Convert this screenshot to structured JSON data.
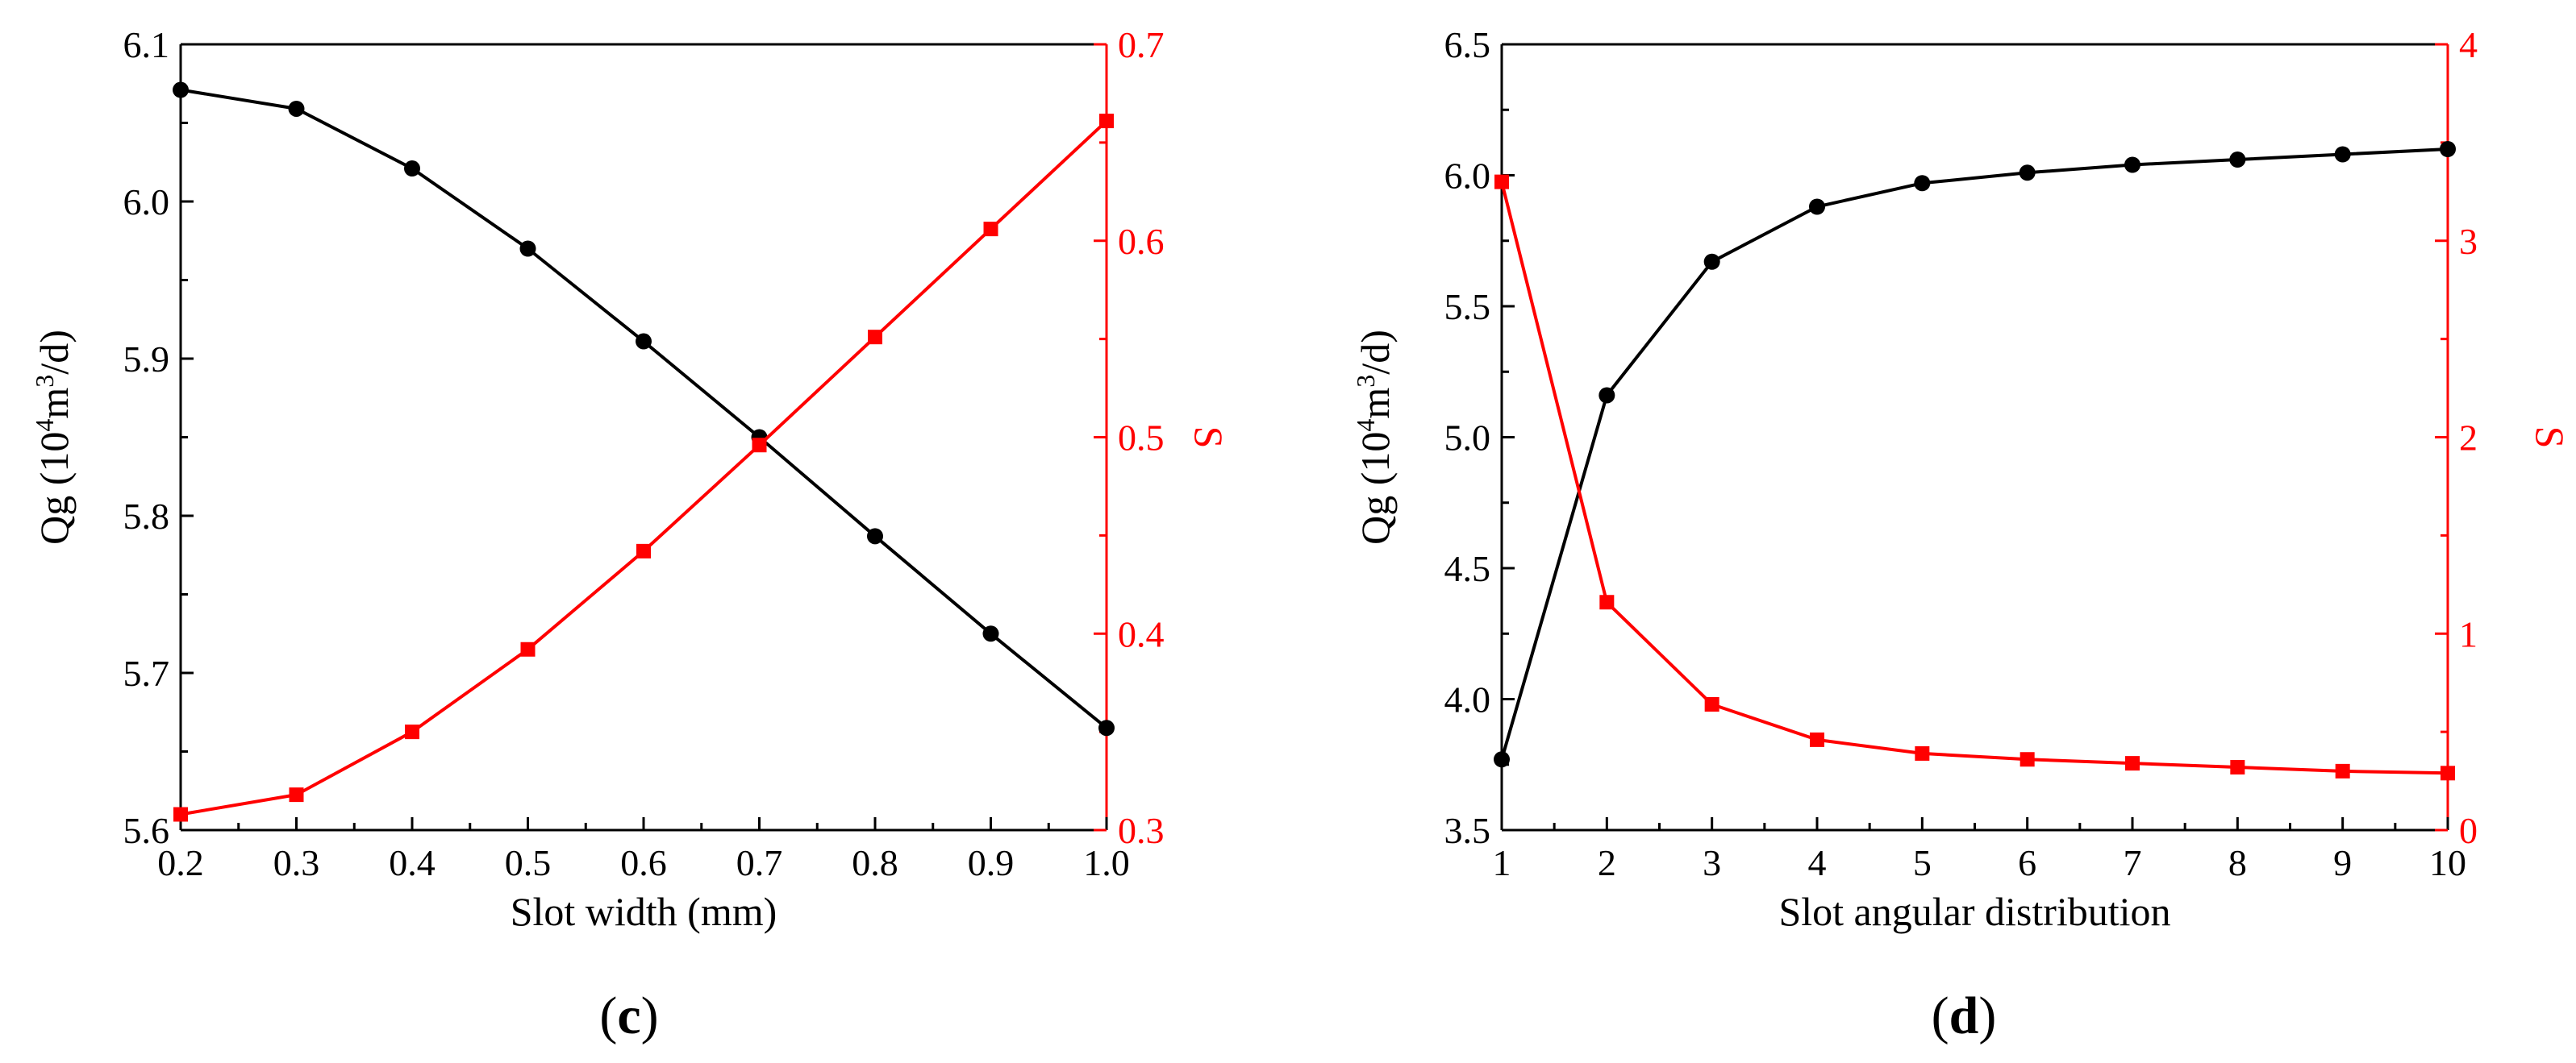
{
  "chart_data": [
    {
      "type": "line",
      "panel": "c",
      "panel_label": {
        "open": "(",
        "letter": "c",
        "close": ")"
      },
      "xlabel": "Slot width (mm)",
      "ylabel_left": {
        "prefix": "Qg (10",
        "sup1": "4",
        "mid": "m",
        "sup2": "3",
        "suffix": "/d)"
      },
      "ylabel_right": "S",
      "x": [
        0.2,
        0.3,
        0.4,
        0.5,
        0.6,
        0.7,
        0.8,
        0.9,
        1.0
      ],
      "xlim": [
        0.2,
        1.0
      ],
      "x_ticks": [
        "0.2",
        "0.3",
        "0.4",
        "0.5",
        "0.6",
        "0.7",
        "0.8",
        "0.9",
        "1.0"
      ],
      "ylim_left": [
        5.6,
        6.1
      ],
      "y_ticks_left": [
        "5.6",
        "5.7",
        "5.8",
        "5.9",
        "6.0",
        "6.1"
      ],
      "ylim_right": [
        0.3,
        0.7
      ],
      "y_ticks_right": [
        "0.3",
        "0.4",
        "0.5",
        "0.6",
        "0.7"
      ],
      "series": [
        {
          "name": "Qg",
          "axis": "left",
          "color": "#000000",
          "marker": "circle",
          "values": [
            6.071,
            6.059,
            6.021,
            5.97,
            5.911,
            5.85,
            5.787,
            5.725,
            5.665
          ]
        },
        {
          "name": "S",
          "axis": "right",
          "color": "#ff0000",
          "marker": "square",
          "values": [
            0.308,
            0.318,
            0.35,
            0.392,
            0.442,
            0.496,
            0.551,
            0.606,
            0.661
          ]
        }
      ]
    },
    {
      "type": "line",
      "panel": "d",
      "panel_label": {
        "open": "(",
        "letter": "d",
        "close": ")"
      },
      "xlabel": "Slot angular distribution",
      "ylabel_left": {
        "prefix": "Qg (10",
        "sup1": "4",
        "mid": "m",
        "sup2": "3",
        "suffix": "/d)"
      },
      "ylabel_right": "S",
      "x": [
        1,
        2,
        3,
        4,
        5,
        6,
        7,
        8,
        9,
        10
      ],
      "xlim": [
        1,
        10
      ],
      "x_ticks": [
        "1",
        "2",
        "3",
        "4",
        "5",
        "6",
        "7",
        "8",
        "9",
        "10"
      ],
      "ylim_left": [
        3.5,
        6.5
      ],
      "y_ticks_left": [
        "3.5",
        "4.0",
        "4.5",
        "5.0",
        "5.5",
        "6.0",
        "6.5"
      ],
      "ylim_right": [
        0,
        4
      ],
      "y_ticks_right": [
        "0",
        "1",
        "2",
        "3",
        "4"
      ],
      "series": [
        {
          "name": "Qg",
          "axis": "left",
          "color": "#000000",
          "marker": "circle",
          "values": [
            3.77,
            5.16,
            5.67,
            5.88,
            5.97,
            6.01,
            6.04,
            6.06,
            6.08,
            6.1
          ]
        },
        {
          "name": "S",
          "axis": "right",
          "color": "#ff0000",
          "marker": "square",
          "values": [
            3.3,
            1.16,
            0.64,
            0.46,
            0.39,
            0.36,
            0.34,
            0.32,
            0.3,
            0.29
          ]
        }
      ]
    }
  ]
}
